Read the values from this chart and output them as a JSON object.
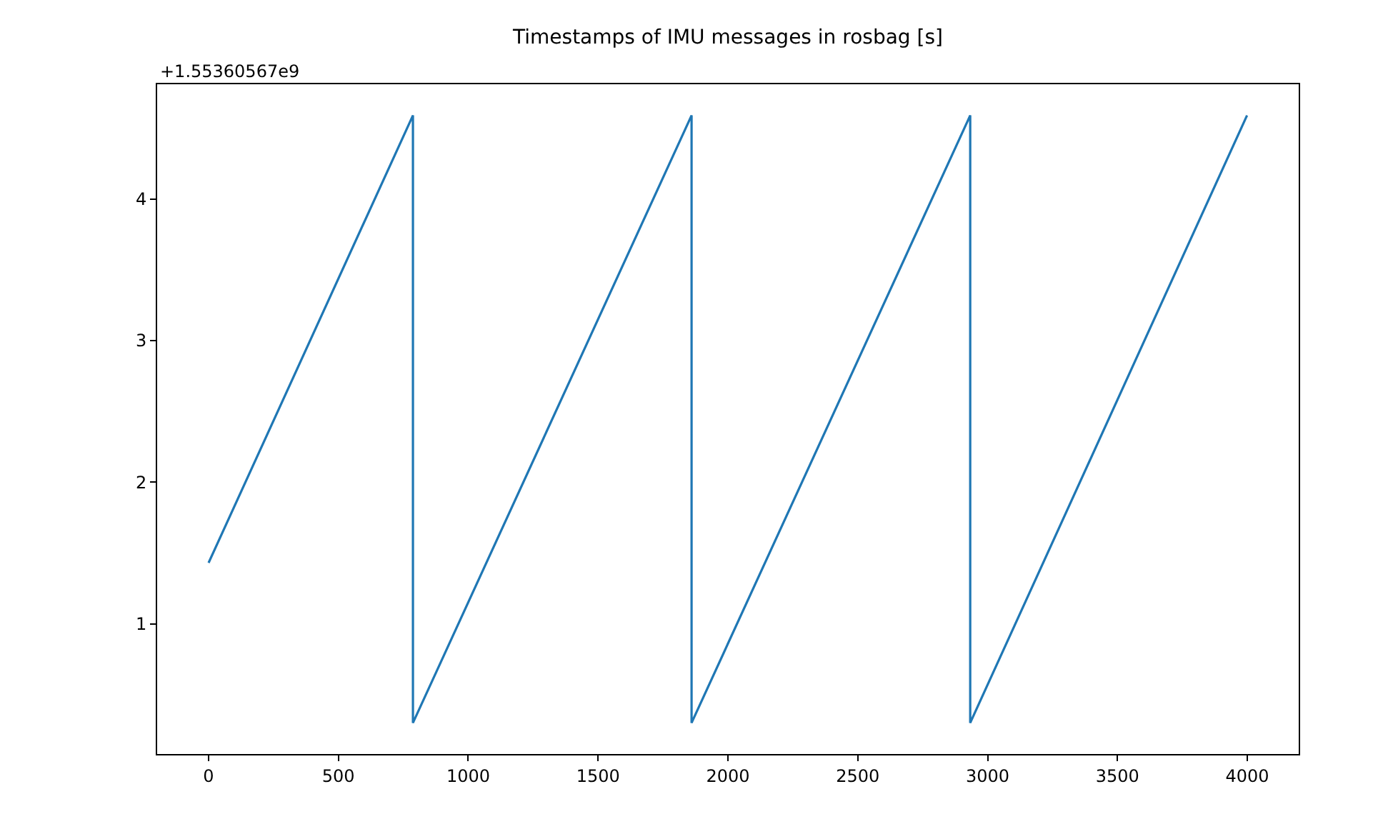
{
  "chart_data": {
    "type": "line",
    "title": "Timestamps of IMU messages in rosbag [s]",
    "annotations": [
      "+1.55360567e9"
    ],
    "x": [
      0,
      787,
      787,
      1860,
      1860,
      2933,
      2933,
      3999
    ],
    "series": [
      {
        "color": "#1f77b4",
        "values": [
          1.43,
          4.59,
          0.3,
          4.59,
          0.3,
          4.59,
          0.3,
          4.59
        ]
      }
    ],
    "xlim": [
      -198,
      4198
    ],
    "xticks": [
      0,
      500,
      1000,
      1500,
      2000,
      2500,
      3000,
      3500,
      4000
    ],
    "ylim": [
      0.08,
      4.81
    ],
    "yticks": [
      1,
      2,
      3,
      4
    ],
    "marker": "none",
    "line_style": "solid"
  }
}
